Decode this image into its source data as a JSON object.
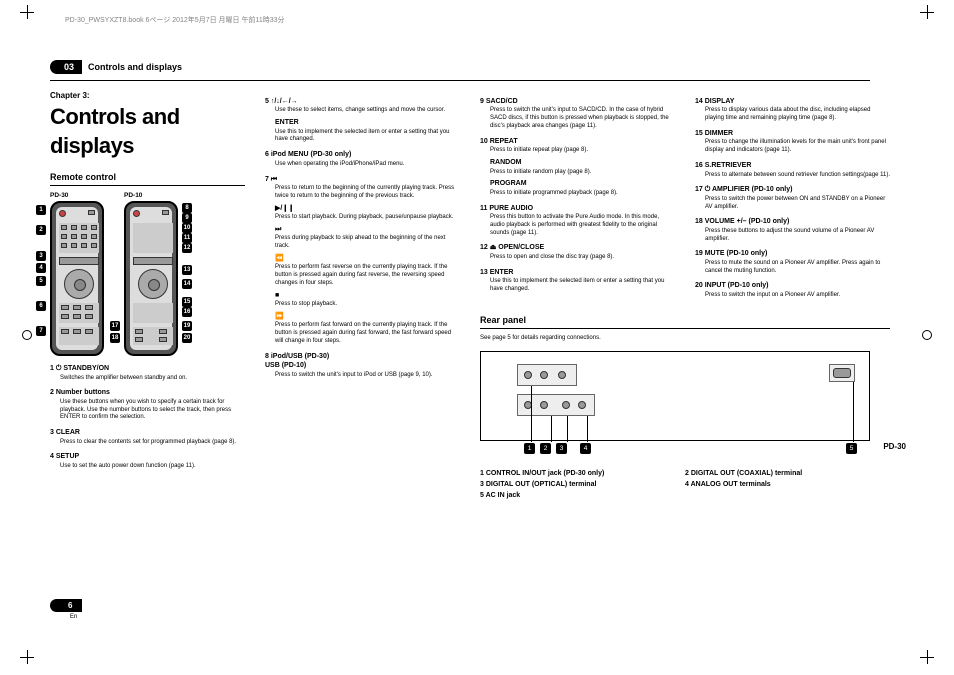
{
  "meta": {
    "bookmark": "PD-30_PWSYXZT8.book 6ページ 2012年5月7日 月曜日 午前11時33分",
    "section_number": "03",
    "section_label": "Controls and displays",
    "chapter_label": "Chapter 3:",
    "chapter_title": "Controls and displays",
    "page_number": "6",
    "page_lang": "En"
  },
  "remote": {
    "heading": "Remote control",
    "pd30_label": "PD-30",
    "pd10_label": "PD-10"
  },
  "col1": [
    {
      "h": "1  ⏻ STANDBY/ON",
      "b": "Switches the amplifier between standby and on."
    },
    {
      "h": "2  Number buttons",
      "b": "Use these buttons when you wish to specify a certain track for playback. Use the number buttons to select the track, then press ENTER to confirm the selection."
    },
    {
      "h": "3  CLEAR",
      "b": "Press to clear the contents set for programmed playback (page 8)."
    },
    {
      "h": "4  SETUP",
      "b": "Use to set the auto power down function (page 11)."
    }
  ],
  "col2": [
    {
      "h": "5  ↑/↓/←/→",
      "b": "Use these to select items, change settings and move the cursor."
    },
    {
      "sub": "ENTER",
      "b": "Use this to implement the selected item or enter a setting that you have changed."
    },
    {
      "h": "6  iPod MENU (PD-30 only)",
      "b": "Use when operating the iPod/iPhone/iPad menu."
    },
    {
      "h": "7  ⏮",
      "b": "Press to return to the beginning of the currently playing track. Press twice to return to the beginning of the previous track."
    },
    {
      "sub": "▶/❙❙",
      "b": "Press to start playback. During playback, pause/unpause playback."
    },
    {
      "sub": "⏭",
      "b": "Press during playback to skip ahead to the beginning of the next track."
    },
    {
      "sub": "⏪",
      "b": "Press to perform fast reverse on the currently playing track. If the button is pressed again during fast reverse, the reversing speed changes in four steps."
    },
    {
      "sub": "■",
      "b": "Press to stop playback."
    },
    {
      "sub": "⏩",
      "b": "Press to perform fast forward on the currently playing track. If the button is pressed again during fast forward, the fast forward speed will change in four steps."
    },
    {
      "h": "8  iPod/USB (PD-30)\n   USB (PD-10)",
      "b": "Press to switch the unit's input to iPod or USB (page 9, 10)."
    }
  ],
  "col3": [
    {
      "h": "9  SACD/CD",
      "b": "Press to switch the unit's input to SACD/CD. In the case of hybrid SACD discs, if this button is pressed when playback is stopped, the disc's playback area changes (page 11)."
    },
    {
      "h": "10  REPEAT",
      "b": "Press to initiate repeat play (page 8)."
    },
    {
      "sub": "RANDOM",
      "b": "Press to initiate random play (page 8)."
    },
    {
      "sub": "PROGRAM",
      "b": "Press to initiate programmed playback (page 8)."
    },
    {
      "h": "11  PURE AUDIO",
      "b": "Press this button to activate the Pure Audio mode. In this mode, audio playback is performed with greatest fidelity to the original sounds (page 11)."
    },
    {
      "h": "12  ⏏ OPEN/CLOSE",
      "b": "Press to open and close the disc tray (page 8)."
    },
    {
      "h": "13  ENTER",
      "b": "Use this to implement the selected item or enter a setting that you have changed."
    }
  ],
  "rear": {
    "heading": "Rear panel",
    "intro": "See page 5 for details regarding connections.",
    "model_label": "PD-30",
    "items": [
      {
        "n": "1",
        "t": "CONTROL IN/OUT jack (PD-30 only)"
      },
      {
        "n": "2",
        "t": "DIGITAL OUT (COAXIAL) terminal"
      },
      {
        "n": "3",
        "t": "DIGITAL OUT (OPTICAL) terminal"
      },
      {
        "n": "4",
        "t": "ANALOG OUT terminals"
      },
      {
        "n": "5",
        "t": "AC IN jack"
      }
    ]
  },
  "col4": [
    {
      "h": "14  DISPLAY",
      "b": "Press to display various data about the disc, including elapsed playing time and remaining playing time (page 8)."
    },
    {
      "h": "15  DIMMER",
      "b": "Press to change the illumination levels for the main unit's front panel display and indicators (page 11)."
    },
    {
      "h": "16  S.RETRIEVER",
      "b": "Press to alternate between sound retriever function settings(page 11)."
    },
    {
      "h": "17  ⏻ AMPLIFIER (PD-10 only)",
      "b": "Press to switch the power between ON and STANDBY on a Pioneer AV amplifier."
    },
    {
      "h": "18  VOLUME +/– (PD-10 only)",
      "b": "Press these buttons to adjust the sound volume of a Pioneer AV amplifier."
    },
    {
      "h": "19  MUTE (PD-10 only)",
      "b": "Press to mute the sound on a Pioneer AV amplifier. Press again to cancel the muting function."
    },
    {
      "h": "20  INPUT (PD-10 only)",
      "b": "Press to switch the input on a Pioneer AV amplifier."
    }
  ],
  "callouts_left": [
    "1",
    "2",
    "3",
    "4",
    "5",
    "6",
    "7"
  ],
  "callouts_mid": [
    "8",
    "9",
    "10",
    "11",
    "12",
    "13",
    "14",
    "15",
    "16",
    "17",
    "18",
    "19",
    "20"
  ]
}
